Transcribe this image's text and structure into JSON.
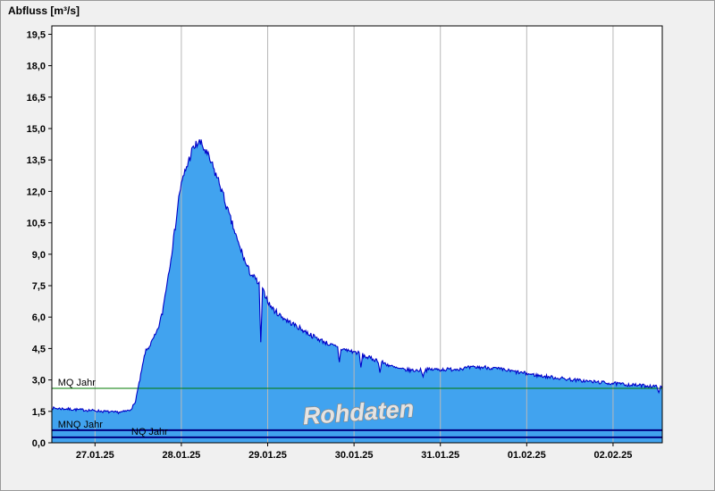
{
  "window": {
    "title": "Abfluss [m³/s]"
  },
  "watermark": "Rohdaten",
  "chart_data": {
    "type": "area",
    "title": "Abfluss [m³/s]",
    "ylabel": "Abfluss [m³/s]",
    "xlabel": "",
    "ylim": [
      0,
      19.9
    ],
    "x_domain_days": [
      0,
      7.07
    ],
    "grid": "vertical-only",
    "legend": "none",
    "y_ticks": [
      {
        "value": 0.0,
        "label": "0,0"
      },
      {
        "value": 1.5,
        "label": "1,5"
      },
      {
        "value": 3.0,
        "label": "3,0"
      },
      {
        "value": 4.5,
        "label": "4,5"
      },
      {
        "value": 6.0,
        "label": "6,0"
      },
      {
        "value": 7.5,
        "label": "7,5"
      },
      {
        "value": 9.0,
        "label": "9,0"
      },
      {
        "value": 10.5,
        "label": "10,5"
      },
      {
        "value": 12.0,
        "label": "12,0"
      },
      {
        "value": 13.5,
        "label": "13,5"
      },
      {
        "value": 15.0,
        "label": "15,0"
      },
      {
        "value": 16.5,
        "label": "16,5"
      },
      {
        "value": 18.0,
        "label": "18,0"
      },
      {
        "value": 19.5,
        "label": "19,5"
      }
    ],
    "x_ticks": [
      {
        "day": 0.5,
        "label": "27.01.25"
      },
      {
        "day": 1.5,
        "label": "28.01.25"
      },
      {
        "day": 2.5,
        "label": "29.01.25"
      },
      {
        "day": 3.5,
        "label": "30.01.25"
      },
      {
        "day": 4.5,
        "label": "31.01.25"
      },
      {
        "day": 5.5,
        "label": "01.02.25"
      },
      {
        "day": 6.5,
        "label": "02.02.25"
      }
    ],
    "series": [
      {
        "name": "Rohdaten",
        "keypoints": [
          [
            0.0,
            1.65
          ],
          [
            0.15,
            1.62
          ],
          [
            0.3,
            1.58
          ],
          [
            0.45,
            1.55
          ],
          [
            0.6,
            1.5
          ],
          [
            0.72,
            1.45
          ],
          [
            0.82,
            1.47
          ],
          [
            0.9,
            1.55
          ],
          [
            0.96,
            1.85
          ],
          [
            1.02,
            3.0
          ],
          [
            1.08,
            4.3
          ],
          [
            1.15,
            4.75
          ],
          [
            1.22,
            5.3
          ],
          [
            1.28,
            6.2
          ],
          [
            1.32,
            7.3
          ],
          [
            1.36,
            8.3
          ],
          [
            1.42,
            10.0
          ],
          [
            1.48,
            12.0
          ],
          [
            1.54,
            12.9
          ],
          [
            1.58,
            13.4
          ],
          [
            1.62,
            13.9
          ],
          [
            1.66,
            14.15
          ],
          [
            1.7,
            14.35
          ],
          [
            1.74,
            14.2
          ],
          [
            1.78,
            13.9
          ],
          [
            1.84,
            13.4
          ],
          [
            1.9,
            12.8
          ],
          [
            1.95,
            12.3
          ],
          [
            2.0,
            11.6
          ],
          [
            2.05,
            10.9
          ],
          [
            2.1,
            10.3
          ],
          [
            2.16,
            9.5
          ],
          [
            2.2,
            9.1
          ],
          [
            2.25,
            8.5
          ],
          [
            2.3,
            8.1
          ],
          [
            2.36,
            7.8
          ],
          [
            2.42,
            7.4
          ],
          [
            2.48,
            7.0
          ],
          [
            2.52,
            6.6
          ],
          [
            2.58,
            6.3
          ],
          [
            2.64,
            6.1
          ],
          [
            2.72,
            5.85
          ],
          [
            2.8,
            5.65
          ],
          [
            2.88,
            5.45
          ],
          [
            2.96,
            5.25
          ],
          [
            3.04,
            5.05
          ],
          [
            3.14,
            4.85
          ],
          [
            3.24,
            4.65
          ],
          [
            3.34,
            4.5
          ],
          [
            3.44,
            4.4
          ],
          [
            3.54,
            4.3
          ],
          [
            3.64,
            4.1
          ],
          [
            3.76,
            3.95
          ],
          [
            3.88,
            3.75
          ],
          [
            3.96,
            3.6
          ],
          [
            4.05,
            3.5
          ],
          [
            4.2,
            3.45
          ],
          [
            4.4,
            3.5
          ],
          [
            4.6,
            3.5
          ],
          [
            4.75,
            3.55
          ],
          [
            4.9,
            3.6
          ],
          [
            5.05,
            3.6
          ],
          [
            5.2,
            3.5
          ],
          [
            5.35,
            3.4
          ],
          [
            5.5,
            3.3
          ],
          [
            5.65,
            3.2
          ],
          [
            5.85,
            3.1
          ],
          [
            6.05,
            3.0
          ],
          [
            6.25,
            2.92
          ],
          [
            6.45,
            2.85
          ],
          [
            6.6,
            2.8
          ],
          [
            6.75,
            2.75
          ],
          [
            6.9,
            2.72
          ],
          [
            7.0,
            2.68
          ],
          [
            7.07,
            2.62
          ]
        ]
      }
    ],
    "noise": {
      "seed": 7,
      "base": 0.04,
      "per_value": 0.015,
      "max": 0.25
    },
    "spikes": [
      [
        2.42,
        4.8
      ],
      [
        3.33,
        3.85
      ],
      [
        3.58,
        3.6
      ],
      [
        3.8,
        3.35
      ],
      [
        4.3,
        3.15
      ],
      [
        7.03,
        2.4
      ]
    ],
    "reference_lines": [
      {
        "label": "MQ Jahr",
        "value": 2.6,
        "color": "#007a00",
        "width": 1,
        "label_day": 0.07
      },
      {
        "label": "MNQ Jahr",
        "value": 0.6,
        "color": "#000080",
        "width": 2,
        "label_day": 0.07
      },
      {
        "label": "NQ Jahr",
        "value": 0.26,
        "color": "#000080",
        "width": 2,
        "label_day": 0.92
      }
    ],
    "colors": {
      "area_fill": "#41a3ef",
      "line": "#0000c8",
      "grid": "#b8b8b8",
      "axis": "#000000",
      "plot_background": "#ffffff",
      "outer_background": "#f0f0f0",
      "tick_label": "#000000",
      "watermark_fill": "#e4e4e4",
      "watermark_stroke": "#8a8a8a"
    }
  }
}
